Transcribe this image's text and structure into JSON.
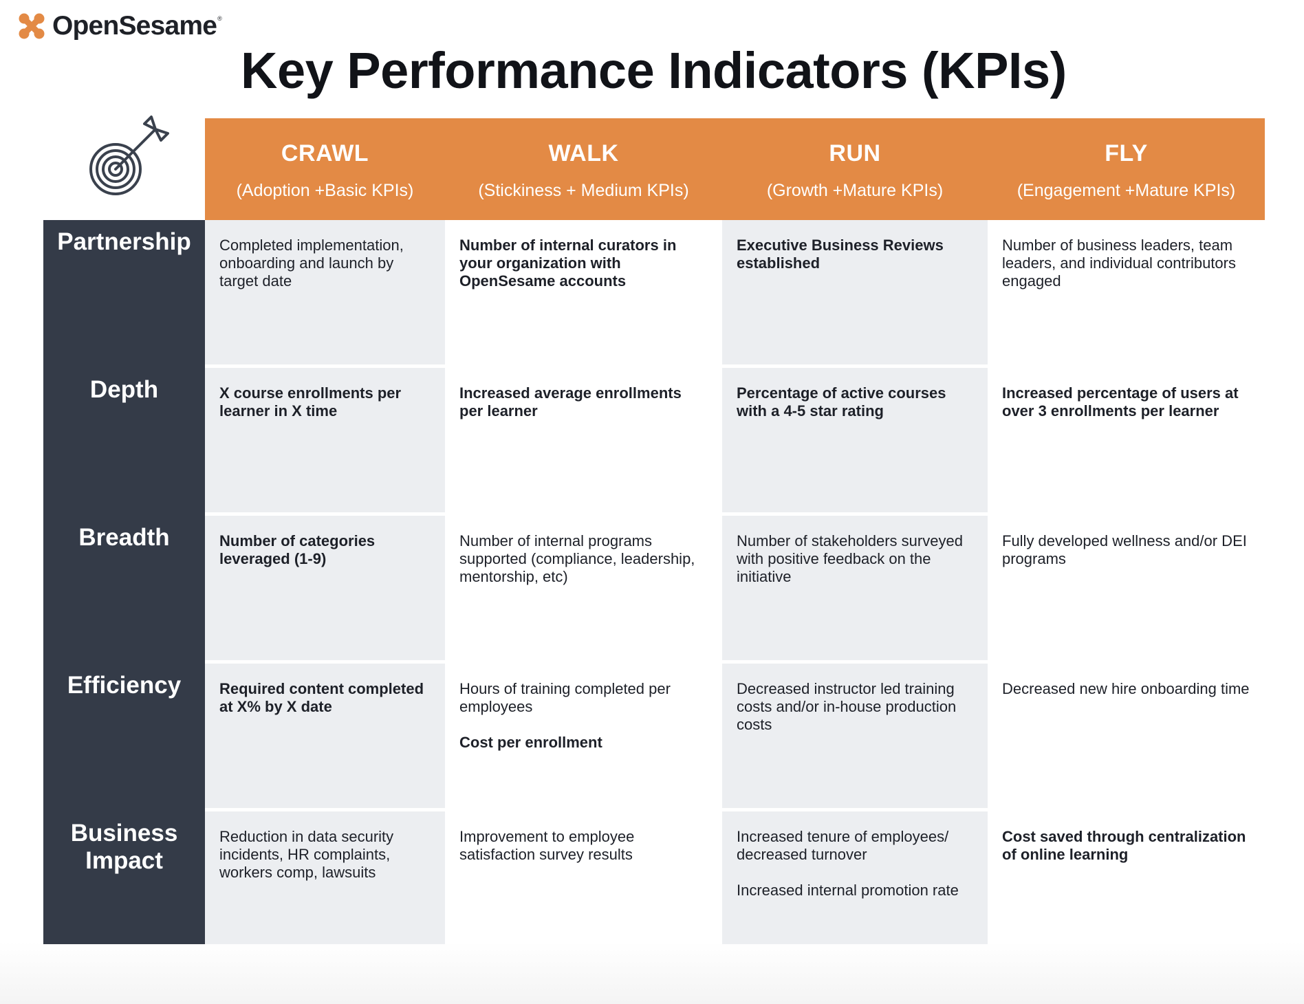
{
  "brand": {
    "name": "OpenSesame",
    "mark": "®",
    "accent": "#e38a45",
    "dark": "#343b48",
    "logo_icon": "open-sesame-x-logo"
  },
  "title": "Key Performance Indicators (KPIs)",
  "icon": "target-dart-icon",
  "stages": [
    {
      "name": "CRAWL",
      "sub": "(Adoption +Basic KPIs)"
    },
    {
      "name": "WALK",
      "sub": "(Stickiness + Medium KPIs)"
    },
    {
      "name": "RUN",
      "sub": "(Growth +Mature KPIs)"
    },
    {
      "name": "FLY",
      "sub": "(Engagement +Mature KPIs)"
    }
  ],
  "rows": [
    {
      "label_lines": [
        "Partnership"
      ],
      "cells": [
        {
          "bold": false,
          "paras": [
            "Completed implementation, onboarding and launch by target date"
          ]
        },
        {
          "bold": true,
          "paras": [
            "Number of internal curators in your organization with OpenSesame accounts"
          ]
        },
        {
          "bold": true,
          "paras": [
            "Executive Business Reviews established"
          ]
        },
        {
          "bold": false,
          "paras": [
            "Number of business leaders, team leaders, and individual contributors engaged"
          ]
        }
      ]
    },
    {
      "label_lines": [
        "Depth"
      ],
      "cells": [
        {
          "bold": true,
          "paras": [
            "X course enrollments per learner in X time"
          ]
        },
        {
          "bold": true,
          "paras": [
            "Increased average enrollments per learner"
          ]
        },
        {
          "bold": true,
          "paras": [
            "Percentage of active courses with a 4-5 star rating"
          ]
        },
        {
          "bold": true,
          "paras": [
            "Increased percentage of users at over 3 enrollments per learner"
          ]
        }
      ]
    },
    {
      "label_lines": [
        "Breadth"
      ],
      "cells": [
        {
          "bold": true,
          "paras": [
            "Number of categories leveraged (1-9)"
          ]
        },
        {
          "bold": false,
          "paras": [
            "Number of internal programs supported (compliance, leadership, mentorship, etc)"
          ]
        },
        {
          "bold": false,
          "paras": [
            "Number of stakeholders surveyed with positive feedback on the initiative"
          ]
        },
        {
          "bold": false,
          "paras": [
            "Fully developed wellness and/or DEI programs"
          ]
        }
      ]
    },
    {
      "label_lines": [
        "Efficiency"
      ],
      "cells": [
        {
          "bold": true,
          "paras": [
            "Required content completed at X% by X date"
          ]
        },
        {
          "bold": false,
          "paras": [
            "Hours of training completed per employees",
            "Cost per enrollment"
          ],
          "bold_paras": [
            1
          ]
        },
        {
          "bold": false,
          "paras": [
            "Decreased instructor led training costs and/or in-house production costs"
          ]
        },
        {
          "bold": false,
          "paras": [
            "Decreased new hire onboarding time"
          ]
        }
      ]
    },
    {
      "label_lines": [
        "Business",
        "Impact"
      ],
      "cells": [
        {
          "bold": false,
          "paras": [
            "Reduction in data security incidents, HR complaints, workers comp, lawsuits"
          ]
        },
        {
          "bold": false,
          "paras": [
            "Improvement to employee satisfaction survey results"
          ]
        },
        {
          "bold": false,
          "paras": [
            "Increased tenure of employees/ decreased turnover",
            "Increased internal promotion rate"
          ]
        },
        {
          "bold": true,
          "paras": [
            "Cost saved through centralization of online learning"
          ]
        }
      ]
    }
  ]
}
